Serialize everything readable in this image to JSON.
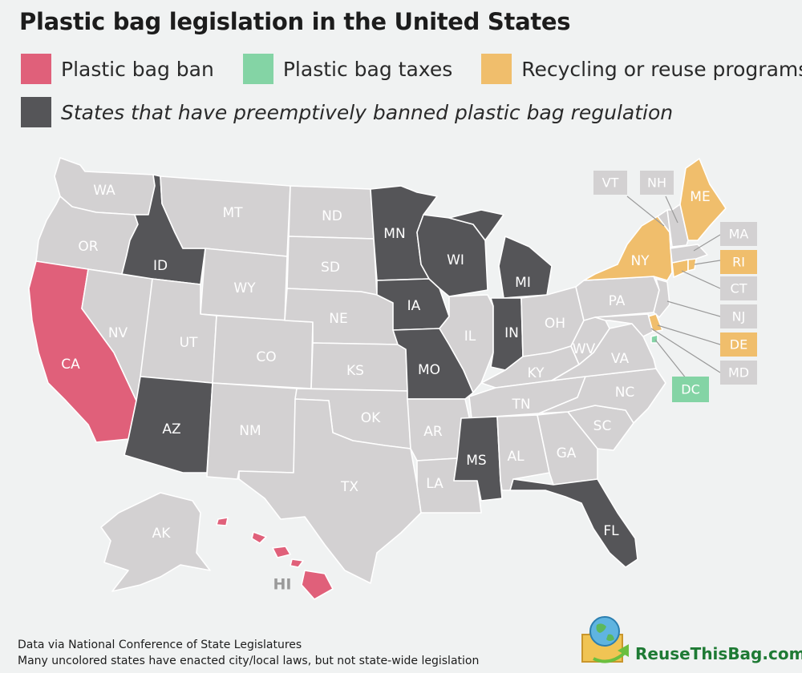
{
  "title": "Plastic bag legislation in the United States",
  "legend": [
    {
      "label": "Plastic bag ban",
      "color": "#e0607a"
    },
    {
      "label": "Plastic bag taxes",
      "color": "#84d4a5"
    },
    {
      "label": "Recycling or reuse programs",
      "color": "#f0be6c"
    },
    {
      "label": "States that have preemptively banned plastic bag regulation",
      "color": "#555558"
    }
  ],
  "colors": {
    "none": "#d3d1d2",
    "ban": "#e0607a",
    "tax": "#84d4a5",
    "recycle": "#f0be6c",
    "preempt": "#555558",
    "callout_line": "#9a9a9a"
  },
  "states": {
    "WA": "WA",
    "OR": "OR",
    "CA": "CA",
    "NV": "NV",
    "ID": "ID",
    "MT": "MT",
    "WY": "WY",
    "UT": "UT",
    "AZ": "AZ",
    "CO": "CO",
    "NM": "NM",
    "ND": "ND",
    "SD": "SD",
    "NE": "NE",
    "KS": "KS",
    "OK": "OK",
    "TX": "TX",
    "MN": "MN",
    "IA": "IA",
    "MO": "MO",
    "AR": "AR",
    "LA": "LA",
    "WI": "WI",
    "IL": "IL",
    "MI": "MI",
    "IN": "IN",
    "OH": "OH",
    "KY": "KY",
    "TN": "TN",
    "MS": "MS",
    "AL": "AL",
    "GA": "GA",
    "FL": "FL",
    "SC": "SC",
    "NC": "NC",
    "VA": "VA",
    "WV": "WV",
    "PA": "PA",
    "NY": "NY",
    "ME": "ME",
    "AK": "AK",
    "HI": "HI",
    "VT": "VT",
    "NH": "NH",
    "MA": "MA",
    "RI": "RI",
    "CT": "CT",
    "NJ": "NJ",
    "DE": "DE",
    "MD": "MD",
    "DC": "DC"
  },
  "footer": {
    "line1": "Data via National Conference of State Legislatures",
    "line2": "Many uncolored states have enacted city/local laws, but not state-wide legislation"
  },
  "brand": "ReuseThisBag.com",
  "brand_logo_icon": "globe-bag-logo-icon"
}
